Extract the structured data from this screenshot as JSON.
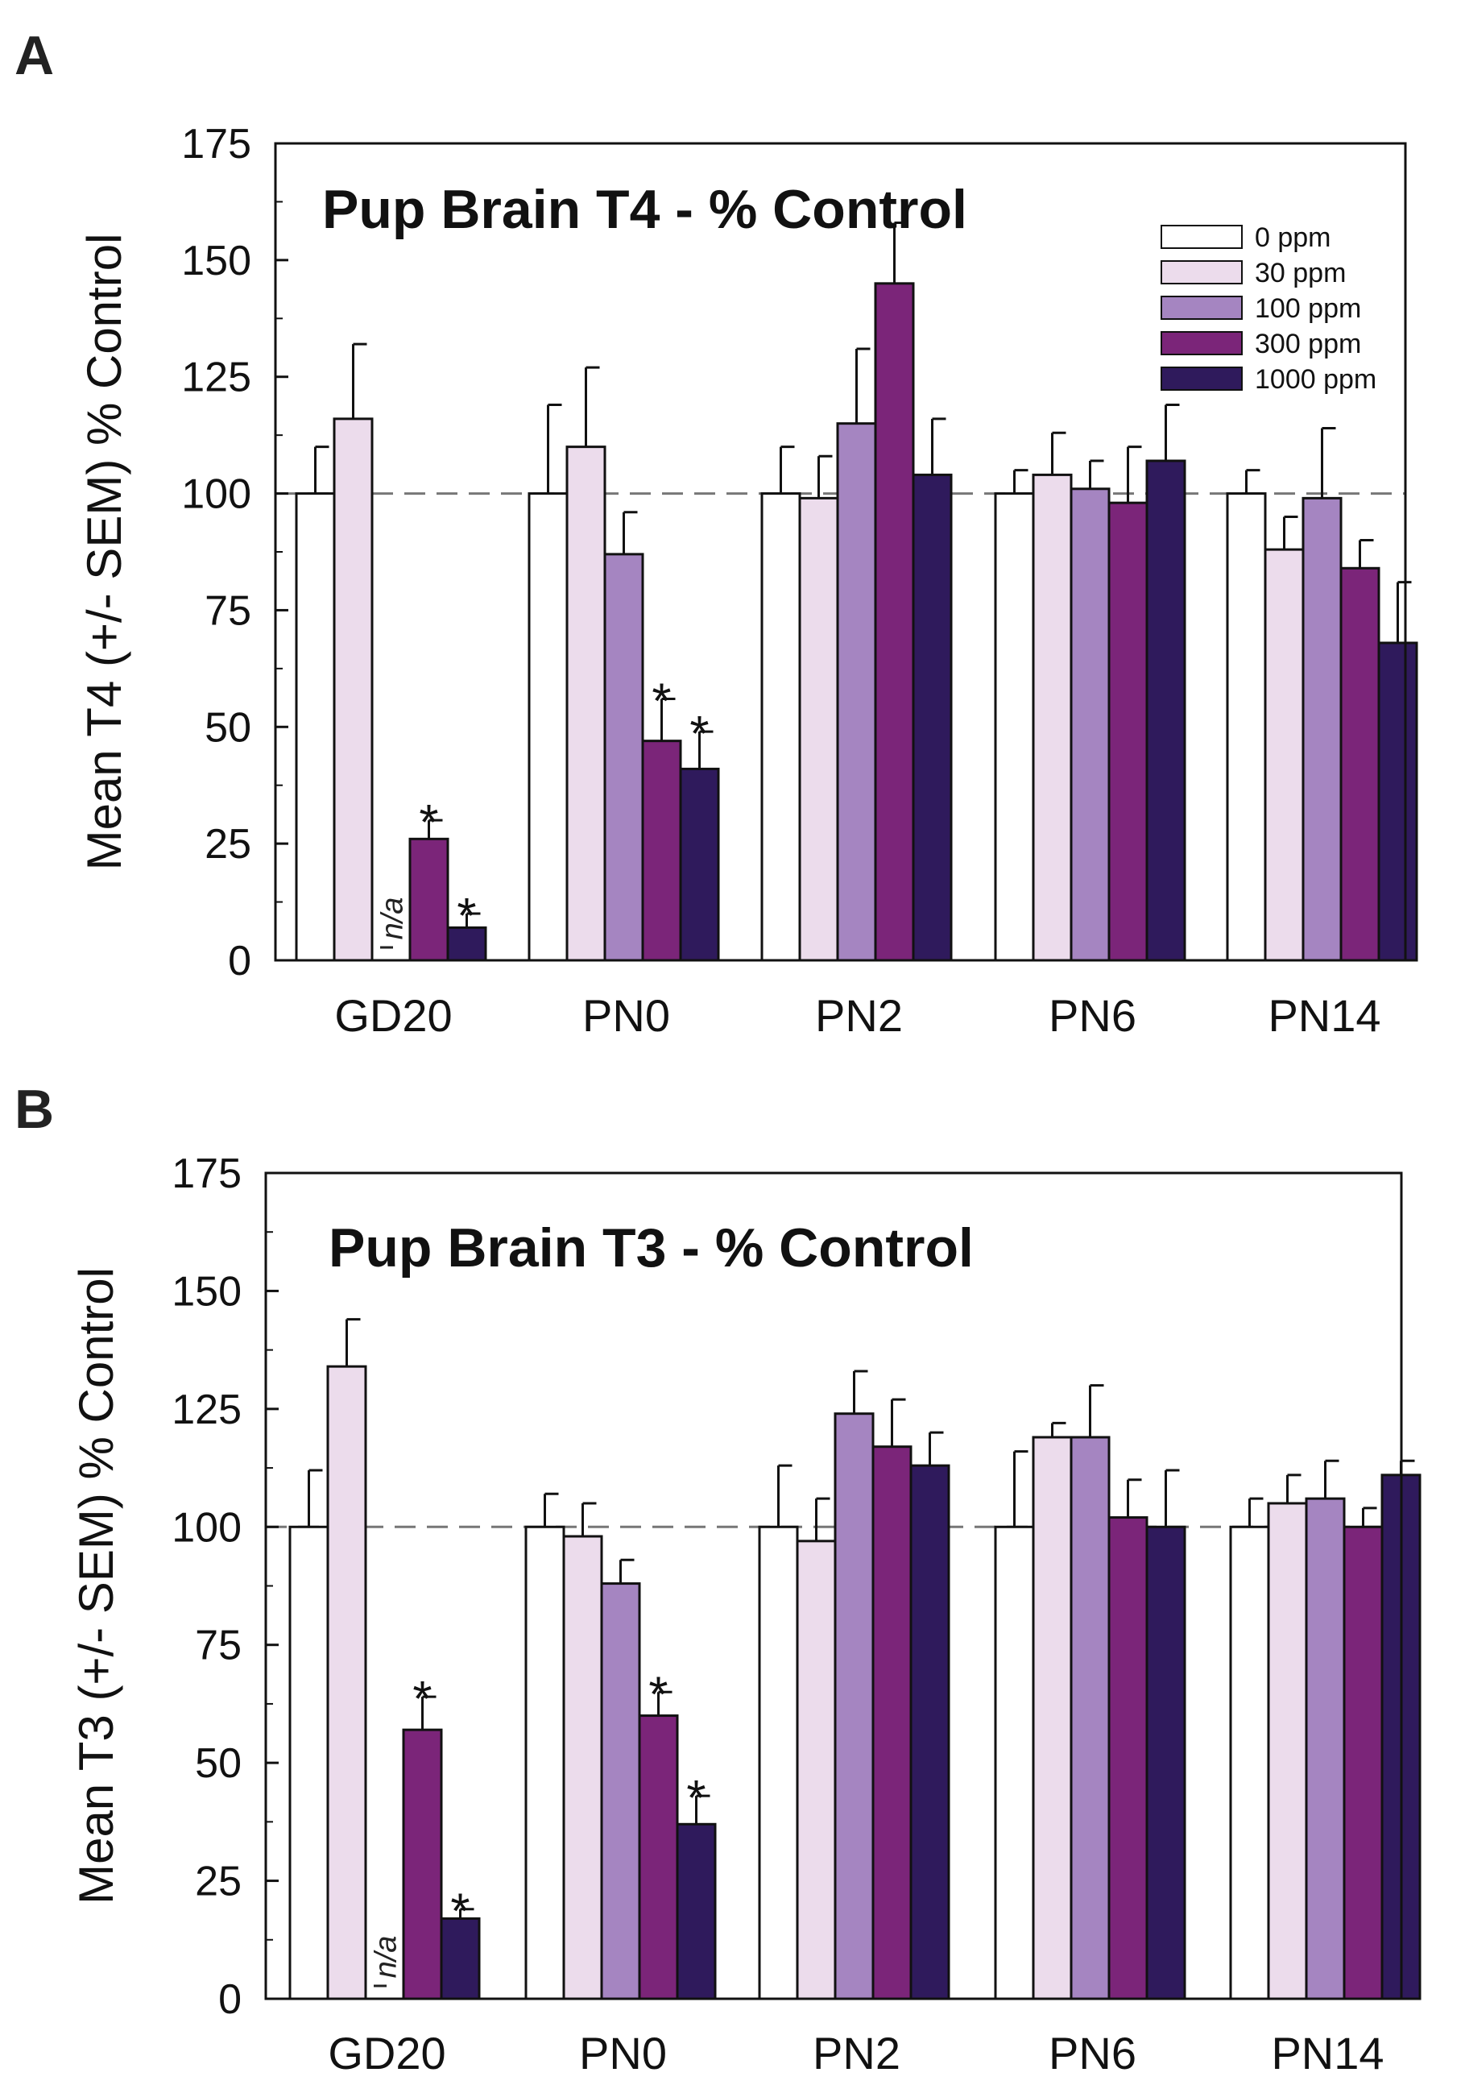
{
  "chart_data": [
    {
      "type": "bar",
      "panel": "A",
      "title": "Pup Brain T4 - % Control",
      "xlabel": "",
      "ylabel": "Mean T4 (+/- SEM) % Control",
      "ylim": [
        0,
        175
      ],
      "yticks": [
        0,
        25,
        50,
        75,
        100,
        125,
        150,
        175
      ],
      "reference_line": 100,
      "categories": [
        "GD20",
        "PN0",
        "PN2",
        "PN6",
        "PN14"
      ],
      "legend": {
        "placement": "top-right",
        "show": true
      },
      "series": [
        {
          "name": "0 ppm",
          "color": "#ffffff",
          "values": [
            100,
            100,
            100,
            100,
            100
          ],
          "errors": [
            10,
            19,
            10,
            5,
            5
          ],
          "stars": [
            false,
            false,
            false,
            false,
            false
          ]
        },
        {
          "name": "30 ppm",
          "color": "#ecdcec",
          "values": [
            116,
            110,
            99,
            104,
            88
          ],
          "errors": [
            16,
            17,
            9,
            9,
            7
          ],
          "stars": [
            false,
            false,
            false,
            false,
            false
          ]
        },
        {
          "name": "100 ppm",
          "color": "#a585c1",
          "values": [
            null,
            87,
            115,
            101,
            99
          ],
          "errors": [
            null,
            9,
            16,
            6,
            15
          ],
          "stars": [
            false,
            false,
            false,
            false,
            false
          ],
          "na_label": [
            "n/a",
            "",
            "",
            "",
            ""
          ]
        },
        {
          "name": "300 ppm",
          "color": "#7b2579",
          "values": [
            26,
            47,
            145,
            98,
            84
          ],
          "errors": [
            4,
            9,
            13,
            12,
            6
          ],
          "stars": [
            true,
            true,
            false,
            false,
            false
          ]
        },
        {
          "name": "1000 ppm",
          "color": "#2f1a5c",
          "values": [
            7,
            41,
            104,
            107,
            68
          ],
          "errors": [
            3,
            8,
            12,
            12,
            13
          ],
          "stars": [
            true,
            true,
            false,
            false,
            false
          ]
        }
      ],
      "star_symbol": "*"
    },
    {
      "type": "bar",
      "panel": "B",
      "title": "Pup Brain T3 - % Control",
      "xlabel": "",
      "ylabel": "Mean T3 (+/- SEM) % Control",
      "ylim": [
        0,
        175
      ],
      "yticks": [
        0,
        25,
        50,
        75,
        100,
        125,
        150,
        175
      ],
      "reference_line": 100,
      "categories": [
        "GD20",
        "PN0",
        "PN2",
        "PN6",
        "PN14"
      ],
      "legend": {
        "show": false
      },
      "series": [
        {
          "name": "0 ppm",
          "color": "#ffffff",
          "values": [
            100,
            100,
            100,
            100,
            100
          ],
          "errors": [
            12,
            7,
            13,
            16,
            6
          ],
          "stars": [
            false,
            false,
            false,
            false,
            false
          ]
        },
        {
          "name": "30 ppm",
          "color": "#ecdcec",
          "values": [
            134,
            98,
            97,
            119,
            105
          ],
          "errors": [
            10,
            7,
            9,
            3,
            6
          ],
          "stars": [
            false,
            false,
            false,
            false,
            false
          ]
        },
        {
          "name": "100 ppm",
          "color": "#a585c1",
          "values": [
            null,
            88,
            124,
            119,
            106
          ],
          "errors": [
            null,
            5,
            9,
            11,
            8
          ],
          "stars": [
            false,
            false,
            false,
            false,
            false
          ],
          "na_label": [
            "n/a",
            "",
            "",
            "",
            ""
          ]
        },
        {
          "name": "300 ppm",
          "color": "#7b2579",
          "values": [
            57,
            60,
            117,
            102,
            100
          ],
          "errors": [
            7,
            5,
            10,
            8,
            4
          ],
          "stars": [
            true,
            true,
            false,
            false,
            false
          ]
        },
        {
          "name": "1000 ppm",
          "color": "#2f1a5c",
          "values": [
            17,
            37,
            113,
            100,
            111
          ],
          "errors": [
            2,
            6,
            7,
            12,
            3
          ],
          "stars": [
            true,
            true,
            false,
            false,
            false
          ]
        }
      ],
      "star_symbol": "*"
    }
  ]
}
